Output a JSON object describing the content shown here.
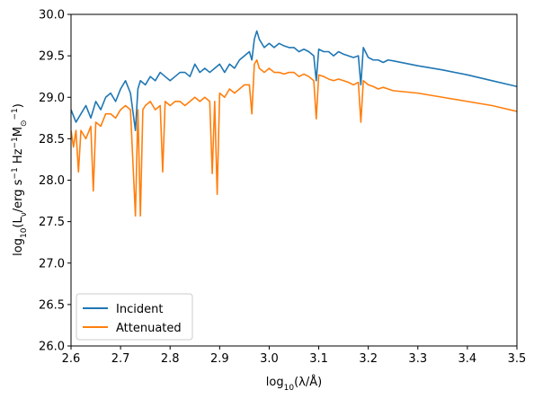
{
  "chart_data": {
    "type": "line",
    "title": "",
    "xlabel": {
      "base": "log",
      "sub": "10",
      "rest": "(λ/Å)"
    },
    "ylabel": {
      "base": "log",
      "sub": "10",
      "p1": "(L",
      "p1sub": "ν",
      "p2": "/erg s",
      "p2sup": "−1",
      "p3": " Hz",
      "p3sup": "−1",
      "p4": "M",
      "p4sub": "⊙",
      "p4sup": "−1",
      "p5": ")"
    },
    "xlim": [
      2.6,
      3.5
    ],
    "ylim": [
      26.0,
      30.0
    ],
    "xticks": [
      2.6,
      2.7,
      2.8,
      2.9,
      3.0,
      3.1,
      3.2,
      3.3,
      3.4,
      3.5
    ],
    "xtick_labels": [
      "2.6",
      "2.7",
      "2.8",
      "2.9",
      "3.0",
      "3.1",
      "3.2",
      "3.3",
      "3.4",
      "3.5"
    ],
    "yticks": [
      26.0,
      26.5,
      27.0,
      27.5,
      28.0,
      28.5,
      29.0,
      29.5,
      30.0
    ],
    "ytick_labels": [
      "26.0",
      "26.5",
      "27.0",
      "27.5",
      "28.0",
      "28.5",
      "29.0",
      "29.5",
      "30.0"
    ],
    "grid": false,
    "legend": {
      "placement": "lower-left"
    },
    "series": [
      {
        "name": "Incident",
        "color": "#1f77b4",
        "x": [
          2.6,
          2.61,
          2.62,
          2.63,
          2.64,
          2.65,
          2.66,
          2.67,
          2.68,
          2.69,
          2.7,
          2.71,
          2.72,
          2.73,
          2.735,
          2.74,
          2.75,
          2.76,
          2.77,
          2.78,
          2.79,
          2.8,
          2.81,
          2.82,
          2.83,
          2.84,
          2.85,
          2.86,
          2.87,
          2.88,
          2.89,
          2.9,
          2.91,
          2.92,
          2.93,
          2.94,
          2.95,
          2.96,
          2.965,
          2.97,
          2.975,
          2.98,
          2.99,
          3.0,
          3.01,
          3.02,
          3.03,
          3.04,
          3.05,
          3.06,
          3.07,
          3.08,
          3.09,
          3.095,
          3.1,
          3.11,
          3.12,
          3.13,
          3.14,
          3.15,
          3.16,
          3.17,
          3.18,
          3.185,
          3.19,
          3.2,
          3.21,
          3.22,
          3.23,
          3.24,
          3.25,
          3.3,
          3.35,
          3.4,
          3.45,
          3.5
        ],
        "y": [
          28.85,
          28.7,
          28.8,
          28.9,
          28.75,
          28.95,
          28.85,
          29.0,
          29.05,
          28.95,
          29.1,
          29.2,
          29.05,
          28.6,
          29.1,
          29.2,
          29.15,
          29.25,
          29.2,
          29.3,
          29.25,
          29.2,
          29.25,
          29.3,
          29.3,
          29.25,
          29.4,
          29.3,
          29.35,
          29.3,
          29.35,
          29.4,
          29.3,
          29.4,
          29.35,
          29.45,
          29.5,
          29.55,
          29.45,
          29.7,
          29.8,
          29.7,
          29.6,
          29.65,
          29.6,
          29.65,
          29.62,
          29.6,
          29.6,
          29.55,
          29.58,
          29.55,
          29.5,
          29.2,
          29.58,
          29.55,
          29.55,
          29.5,
          29.55,
          29.52,
          29.5,
          29.48,
          29.5,
          29.15,
          29.6,
          29.48,
          29.45,
          29.45,
          29.42,
          29.45,
          29.44,
          29.38,
          29.33,
          29.27,
          29.2,
          29.13
        ]
      },
      {
        "name": "Attenuated",
        "color": "#ff7f0e",
        "x": [
          2.6,
          2.605,
          2.61,
          2.615,
          2.62,
          2.63,
          2.64,
          2.645,
          2.65,
          2.66,
          2.67,
          2.68,
          2.69,
          2.7,
          2.71,
          2.72,
          2.73,
          2.735,
          2.74,
          2.745,
          2.75,
          2.76,
          2.77,
          2.78,
          2.785,
          2.79,
          2.8,
          2.81,
          2.82,
          2.83,
          2.84,
          2.85,
          2.86,
          2.87,
          2.88,
          2.885,
          2.89,
          2.895,
          2.9,
          2.91,
          2.92,
          2.93,
          2.94,
          2.95,
          2.96,
          2.965,
          2.97,
          2.975,
          2.98,
          2.99,
          3.0,
          3.01,
          3.02,
          3.03,
          3.04,
          3.05,
          3.06,
          3.07,
          3.08,
          3.09,
          3.095,
          3.1,
          3.11,
          3.12,
          3.13,
          3.14,
          3.15,
          3.16,
          3.17,
          3.18,
          3.185,
          3.19,
          3.2,
          3.21,
          3.22,
          3.23,
          3.24,
          3.25,
          3.3,
          3.35,
          3.4,
          3.45,
          3.5
        ],
        "y": [
          28.6,
          28.4,
          28.6,
          28.1,
          28.6,
          28.5,
          28.65,
          27.87,
          28.7,
          28.65,
          28.8,
          28.8,
          28.75,
          28.85,
          28.9,
          28.85,
          27.57,
          28.85,
          27.57,
          28.85,
          28.9,
          28.95,
          28.85,
          28.9,
          28.1,
          28.95,
          28.9,
          28.95,
          28.95,
          28.9,
          28.95,
          29.0,
          28.95,
          29.0,
          28.95,
          28.08,
          28.95,
          27.83,
          29.05,
          29.0,
          29.1,
          29.05,
          29.1,
          29.15,
          29.15,
          28.8,
          29.4,
          29.45,
          29.35,
          29.3,
          29.35,
          29.3,
          29.3,
          29.28,
          29.3,
          29.3,
          29.25,
          29.28,
          29.25,
          29.2,
          28.74,
          29.27,
          29.25,
          29.22,
          29.2,
          29.22,
          29.2,
          29.18,
          29.15,
          29.18,
          28.7,
          29.2,
          29.15,
          29.13,
          29.1,
          29.12,
          29.1,
          29.08,
          29.05,
          29.0,
          28.95,
          28.9,
          28.83
        ]
      }
    ]
  }
}
